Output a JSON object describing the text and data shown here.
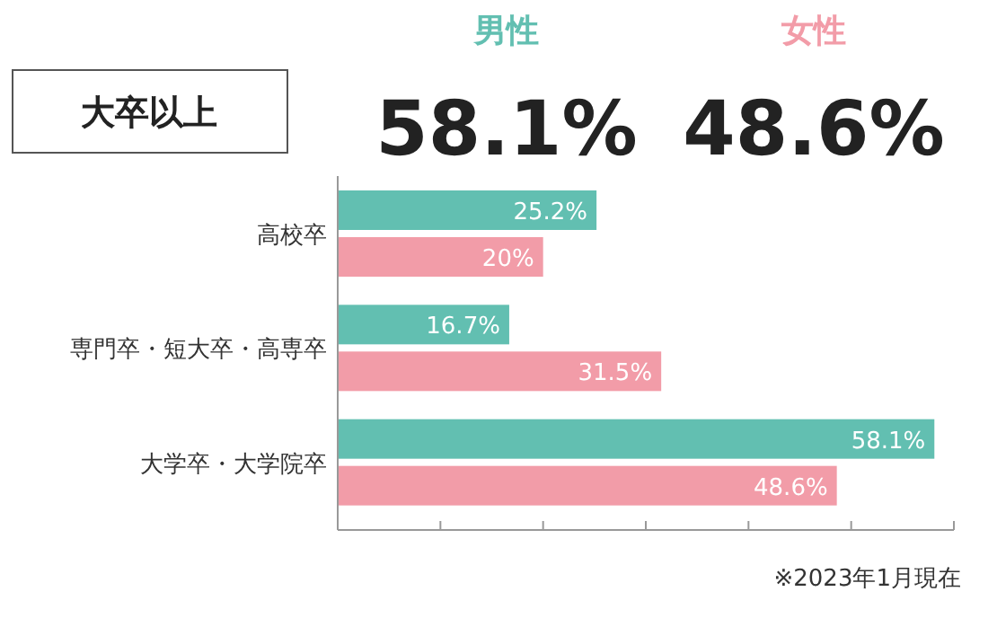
{
  "chart_data": {
    "type": "bar",
    "orientation": "horizontal",
    "categories": [
      "高校卒",
      "専門卒・短大卒・高専卒",
      "大学卒・大学院卒"
    ],
    "series": [
      {
        "name": "男性",
        "color": "#62bfb1",
        "values": [
          25.2,
          16.7,
          58.1
        ],
        "value_labels": [
          "25.2%",
          "16.7%",
          "58.1%"
        ]
      },
      {
        "name": "女性",
        "color": "#f29ca8",
        "values": [
          20,
          31.5,
          48.6
        ],
        "value_labels": [
          "20%",
          "31.5%",
          "48.6%"
        ]
      }
    ],
    "xlim": [
      0,
      60
    ],
    "xticks": [
      {
        "value": 0,
        "label": null
      },
      {
        "value": 10,
        "label": null
      },
      {
        "value": 20,
        "label": null
      },
      {
        "value": 30,
        "label": null
      },
      {
        "value": 40,
        "label": null
      },
      {
        "value": 50,
        "label": null
      },
      {
        "value": 60,
        "label": null
      }
    ],
    "legend": "top",
    "grid": false,
    "annotations": [
      "大卒以上",
      "58.1%",
      "48.6%",
      "※2023年1月現在"
    ]
  }
}
